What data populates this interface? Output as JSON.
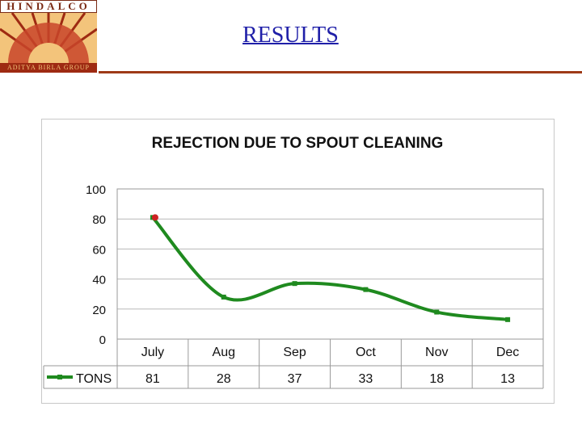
{
  "slide": {
    "title": "RESULTS",
    "logo": {
      "wordmark": "HINDALCO",
      "group": "ADITYA BIRLA GROUP",
      "colors": {
        "brand": "#9e2a12",
        "accent": "#f3c47b"
      }
    }
  },
  "chart_data": {
    "type": "line",
    "title": "REJECTION DUE TO SPOUT CLEANING",
    "categories": [
      "July",
      "Aug",
      "Sep",
      "Oct",
      "Nov",
      "Dec"
    ],
    "series": [
      {
        "name": "TONS",
        "values": [
          81,
          28,
          37,
          33,
          18,
          13
        ],
        "color": "#1f8a1f"
      }
    ],
    "ylim": [
      0,
      100
    ],
    "yticks": [
      0,
      20,
      40,
      60,
      80,
      100
    ],
    "grid": true,
    "legend": "data-table-left",
    "data_table": true,
    "highlight_point": {
      "category": "July",
      "color": "#cc2222"
    }
  }
}
